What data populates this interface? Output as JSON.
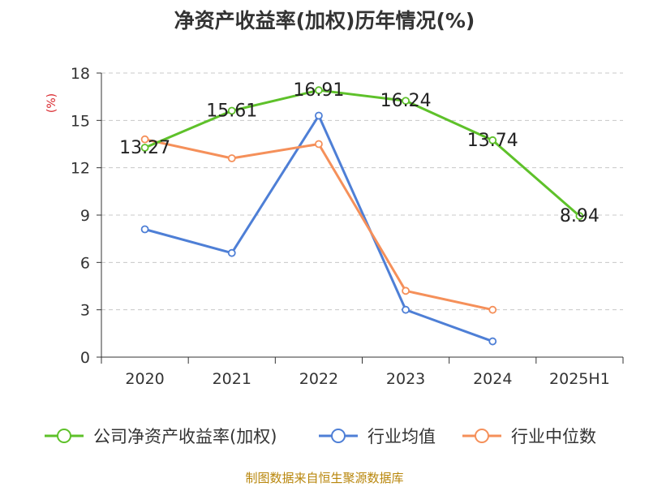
{
  "chart_data": {
    "type": "line",
    "title": "净资产收益率(加权)历年情况(%)",
    "ylabel": "(%)",
    "categories": [
      "2020",
      "2021",
      "2022",
      "2023",
      "2024",
      "2025H1"
    ],
    "ylim": [
      0,
      18
    ],
    "yticks": [
      0,
      3,
      6,
      9,
      12,
      15,
      18
    ],
    "grid": true,
    "legend_position": "bottom",
    "series": [
      {
        "name": "公司净资产收益率(加权)",
        "color": "#5ec12a",
        "values": [
          13.27,
          15.61,
          16.91,
          16.24,
          13.74,
          8.94
        ],
        "show_labels": true
      },
      {
        "name": "行业均值",
        "color": "#4e7fd6",
        "values": [
          8.1,
          6.6,
          15.3,
          3.0,
          1.0,
          null
        ],
        "show_labels": false
      },
      {
        "name": "行业中位数",
        "color": "#f5905a",
        "values": [
          13.8,
          12.6,
          13.5,
          4.2,
          3.0,
          null
        ],
        "show_labels": false
      }
    ]
  },
  "source_note": "制图数据来自恒生聚源数据库"
}
